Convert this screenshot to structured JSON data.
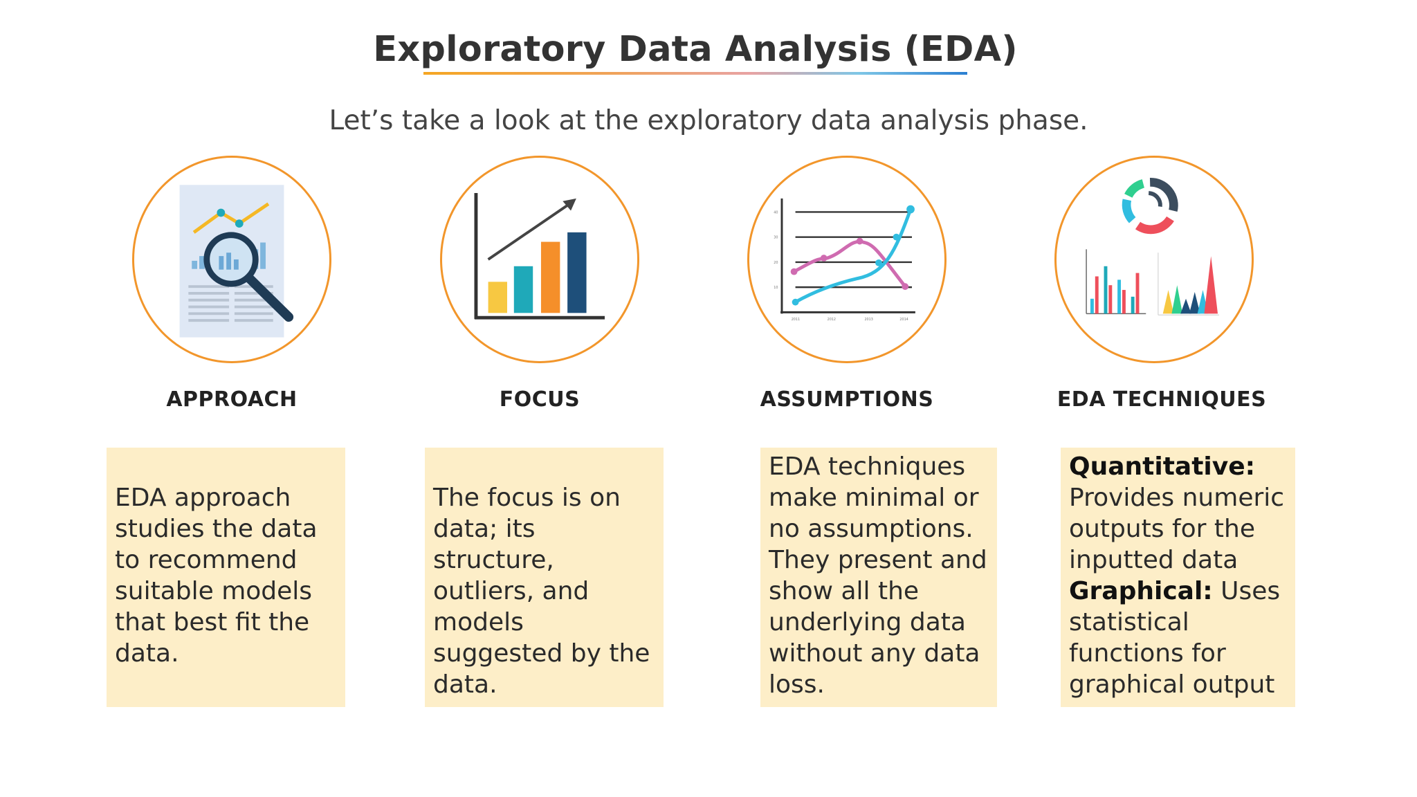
{
  "title": "Exploratory Data Analysis (EDA)",
  "subtitle": "Let’s take a look at the exploratory data analysis phase.",
  "sections": [
    {
      "label": "APPROACH",
      "icon": "magnifying-glass-report-icon",
      "text": "EDA approach studies the data to recommend suitable models that best fit the data."
    },
    {
      "label": "FOCUS",
      "icon": "growth-bar-chart-icon",
      "text": "The focus is on data; its structure, outliers, and models suggested by the data."
    },
    {
      "label": "ASSUMPTIONS",
      "icon": "line-graph-icon",
      "text": "EDA techniques make minimal or no assumptions. They present and show all the underlying data without any data loss."
    },
    {
      "label": "EDA TECHNIQUES",
      "icon": "charts-collection-icon",
      "quantitative_heading": "Quantitative:",
      "quantitative_text": "Provides numeric outputs for the inputted data",
      "graphical_heading": "Graphical:",
      "graphical_text": "Uses statistical functions for graphical output"
    }
  ],
  "colors": {
    "ring": "#f2962b",
    "box_fill": "#fdeec8",
    "bar_yellow": "#f7c842",
    "bar_teal": "#1fa9b9",
    "bar_orange": "#f58f2a",
    "bar_navy": "#1e4f7a",
    "pink": "#cf6bb0",
    "cyan": "#31bde0"
  }
}
